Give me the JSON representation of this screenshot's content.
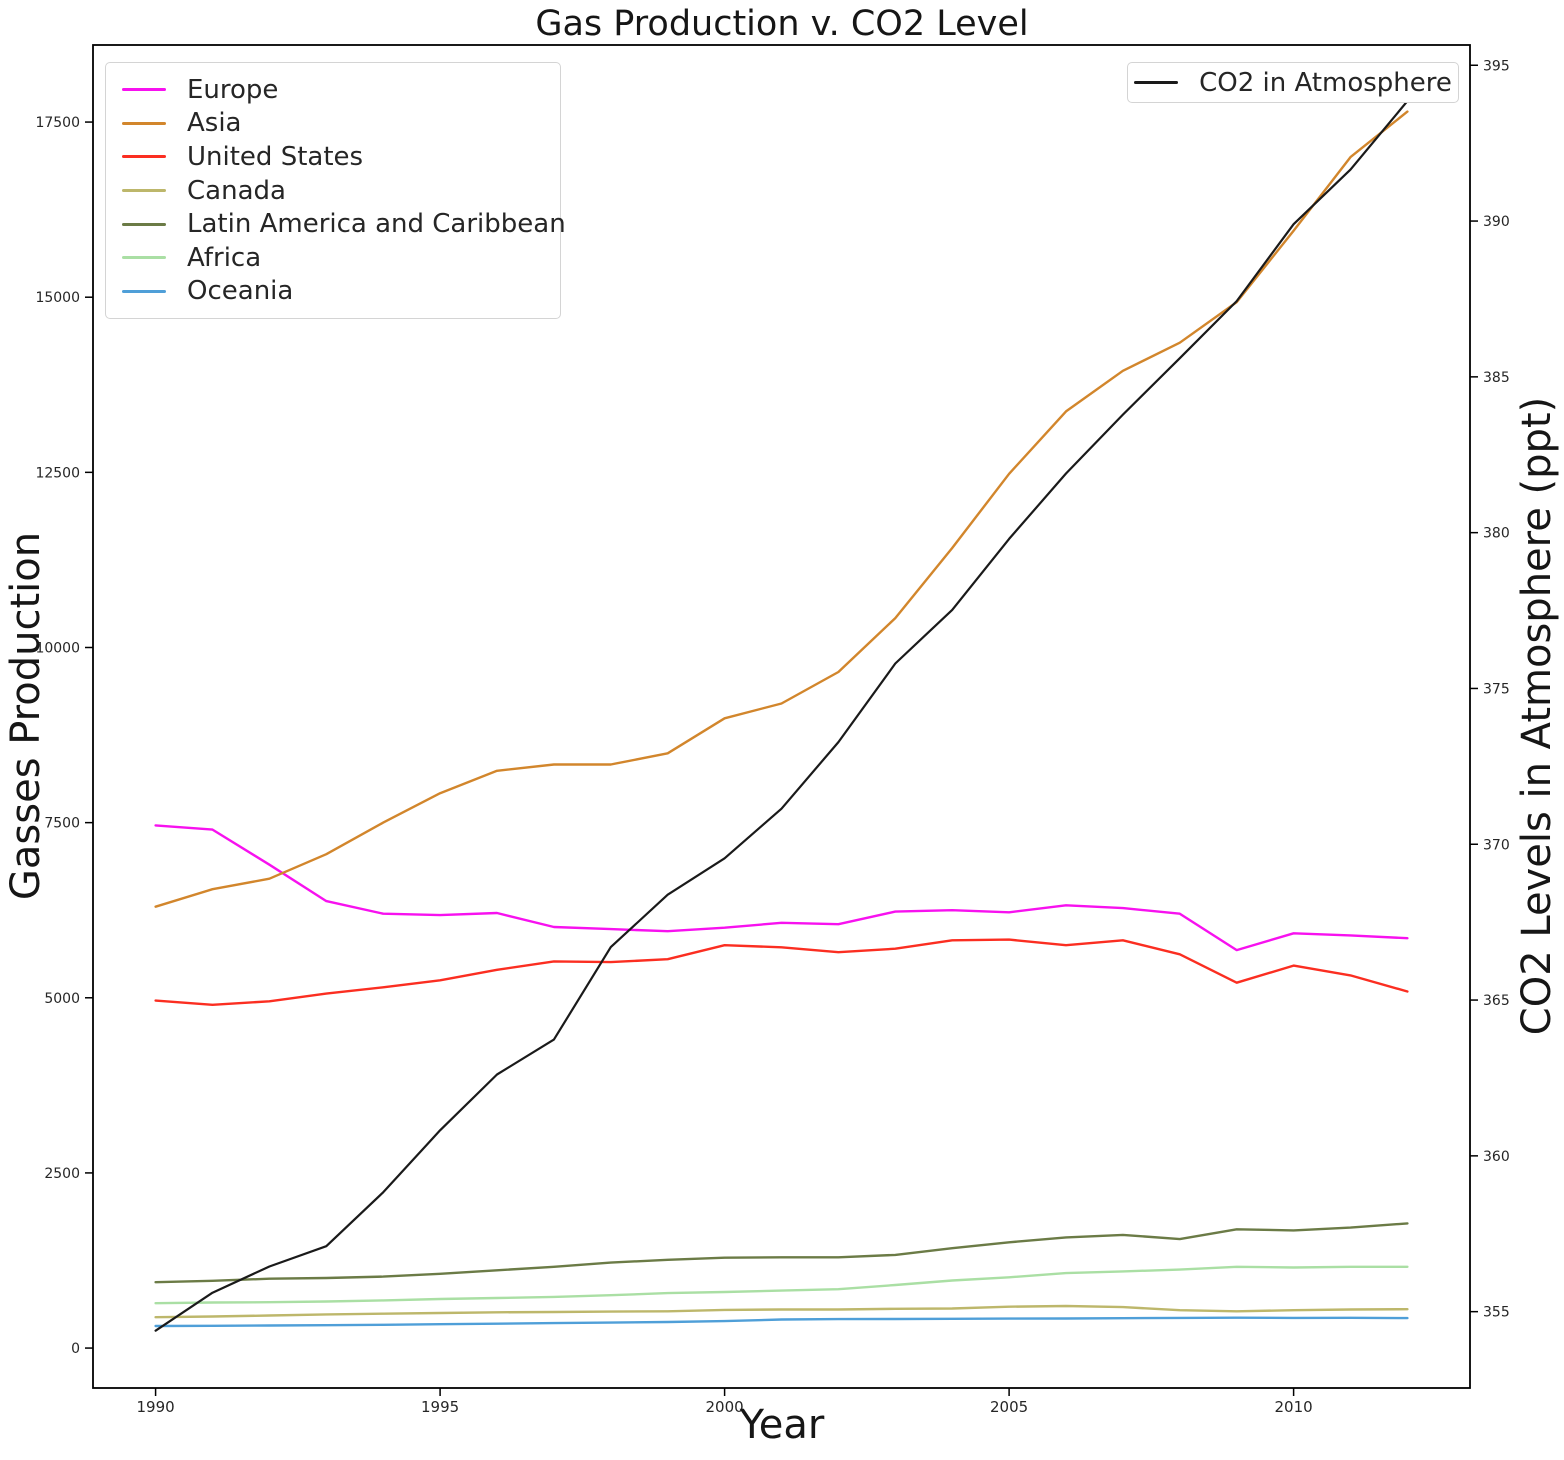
{
  "title": "Gas Production v. CO2 Level",
  "legend_left_title": "",
  "chart_data": {
    "type": "line",
    "title": "Gas Production v. CO2 Level",
    "xlabel": "Year",
    "ylabel_left": "Gasses Production",
    "ylabel_right": "CO2 Levels in Atmosphere (ppt)",
    "grid": false,
    "legend_positions": {
      "series_legend": "upper left",
      "co2_legend": "upper right"
    },
    "x": [
      1990,
      1991,
      1992,
      1993,
      1994,
      1995,
      1996,
      1997,
      1998,
      1999,
      2000,
      2001,
      2002,
      2003,
      2004,
      2005,
      2006,
      2007,
      2008,
      2009,
      2010,
      2011,
      2012
    ],
    "x_ticks": [
      1990,
      1995,
      2000,
      2005,
      2010
    ],
    "xlim": [
      1988.9,
      2013.1
    ],
    "y_left_ticks": [
      0,
      2500,
      5000,
      7500,
      10000,
      12500,
      15000,
      17500
    ],
    "ylim_left": [
      -570,
      18600
    ],
    "y_right_ticks": [
      355,
      360,
      365,
      370,
      375,
      380,
      385,
      390,
      395
    ],
    "ylim_right": [
      352.55,
      395.65
    ],
    "series": [
      {
        "name": "Europe",
        "axis": "left",
        "color": "#f711ef",
        "values": [
          7460,
          7400,
          6900,
          6380,
          6200,
          6180,
          6210,
          6010,
          5980,
          5950,
          6000,
          6070,
          6050,
          6230,
          6250,
          6220,
          6320,
          6280,
          6200,
          5680,
          5920,
          5890,
          5850
        ]
      },
      {
        "name": "Asia",
        "axis": "left",
        "color": "#d2862c",
        "values": [
          6300,
          6550,
          6700,
          7050,
          7500,
          7920,
          8240,
          8330,
          8330,
          8490,
          8990,
          9200,
          9650,
          10420,
          11420,
          12480,
          13370,
          13950,
          14350,
          14930,
          15950,
          17000,
          17650
        ]
      },
      {
        "name": "United States",
        "axis": "left",
        "color": "#fb2e21",
        "values": [
          4960,
          4900,
          4950,
          5060,
          5150,
          5250,
          5400,
          5520,
          5510,
          5550,
          5750,
          5720,
          5650,
          5700,
          5820,
          5830,
          5750,
          5820,
          5620,
          5215,
          5460,
          5320,
          5090
        ]
      },
      {
        "name": "Canada",
        "axis": "left",
        "color": "#bdb76b",
        "values": [
          440,
          450,
          465,
          480,
          490,
          500,
          510,
          515,
          520,
          525,
          545,
          550,
          550,
          560,
          565,
          590,
          600,
          585,
          540,
          525,
          540,
          550,
          555
        ]
      },
      {
        "name": "Latin America and Caribbean",
        "axis": "left",
        "color": "#6b7b46",
        "values": [
          940,
          960,
          990,
          1000,
          1020,
          1060,
          1110,
          1160,
          1220,
          1260,
          1290,
          1295,
          1295,
          1330,
          1425,
          1510,
          1580,
          1615,
          1555,
          1695,
          1680,
          1720,
          1780
        ]
      },
      {
        "name": "Africa",
        "axis": "left",
        "color": "#aadfa4",
        "values": [
          640,
          650,
          655,
          665,
          680,
          700,
          715,
          730,
          755,
          785,
          800,
          820,
          840,
          900,
          965,
          1010,
          1070,
          1095,
          1120,
          1160,
          1150,
          1160,
          1160
        ]
      },
      {
        "name": "Oceania",
        "axis": "left",
        "color": "#4f9fd8",
        "values": [
          315,
          318,
          322,
          326,
          332,
          340,
          348,
          356,
          364,
          372,
          385,
          408,
          413,
          415,
          418,
          420,
          422,
          426,
          430,
          433,
          430,
          432,
          428
        ]
      },
      {
        "name": "CO2 in Atmosphere",
        "axis": "right",
        "color": "#1a1a1a",
        "values": [
          354.39,
          355.61,
          356.45,
          357.1,
          358.83,
          360.82,
          362.61,
          363.73,
          366.7,
          368.38,
          369.55,
          371.14,
          373.28,
          375.8,
          377.52,
          379.8,
          381.9,
          383.79,
          385.6,
          387.43,
          389.9,
          391.65,
          393.85
        ]
      }
    ]
  }
}
